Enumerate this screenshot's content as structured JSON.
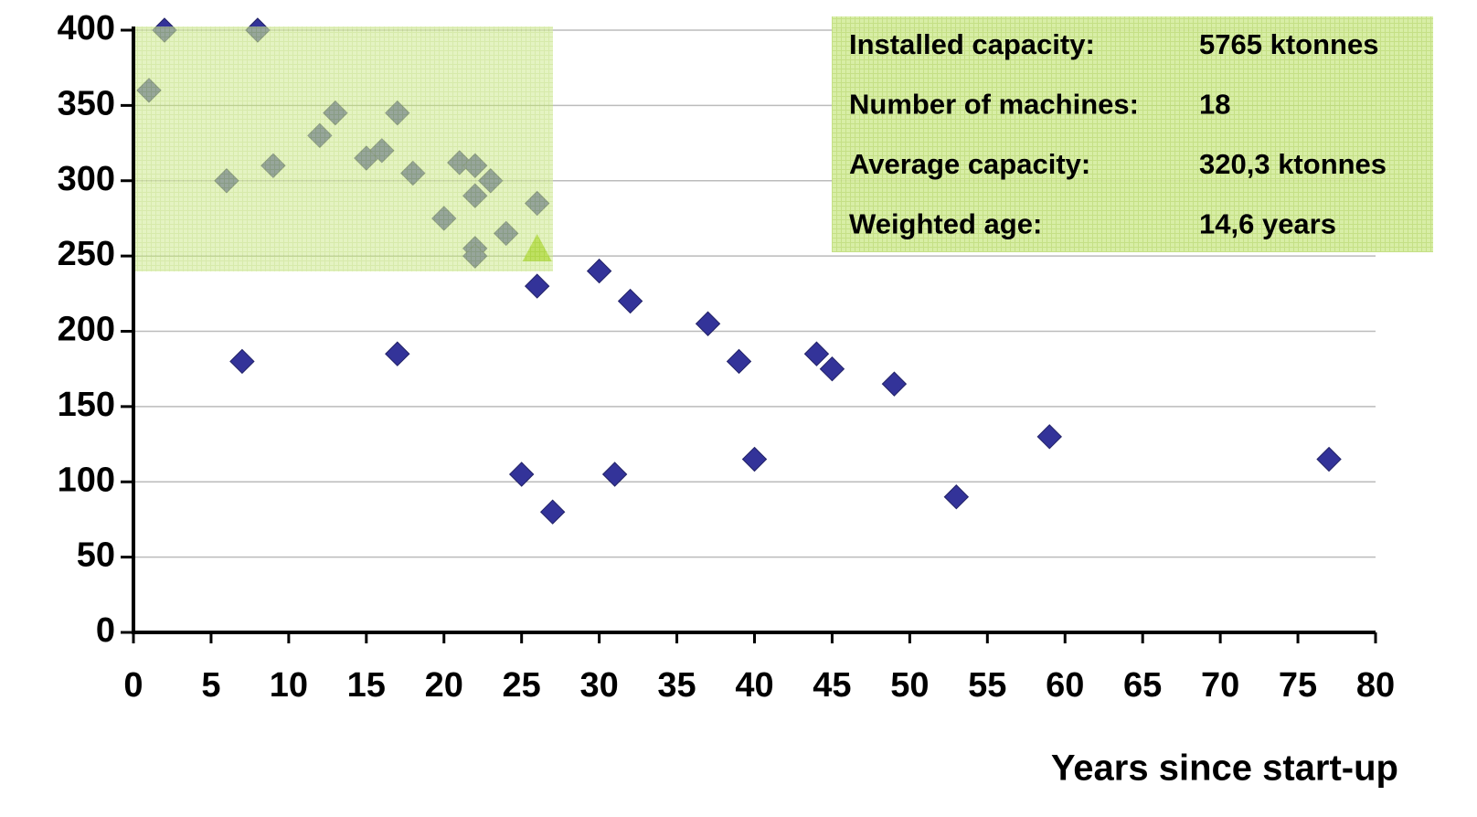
{
  "chart_data": {
    "type": "scatter",
    "x_label": "Years since start-up",
    "xlim": [
      0,
      80
    ],
    "ylim": [
      0,
      400
    ],
    "xticks": [
      0,
      5,
      10,
      15,
      20,
      25,
      30,
      35,
      40,
      45,
      50,
      55,
      60,
      65,
      70,
      75,
      80
    ],
    "yticks": [
      0,
      50,
      100,
      150,
      200,
      250,
      300,
      350,
      400
    ],
    "grid": true,
    "series": [
      {
        "color": "#333399",
        "marker": "diamond",
        "x": [
          1,
          2,
          8,
          6,
          7,
          9,
          12,
          13,
          15,
          16,
          17,
          17,
          18,
          20,
          21,
          22,
          22,
          22,
          22,
          23,
          24,
          25,
          26,
          26,
          27,
          30,
          31,
          32,
          37,
          39,
          40,
          44,
          45,
          49,
          53,
          59,
          77
        ],
        "values": [
          360,
          400,
          400,
          300,
          180,
          310,
          330,
          345,
          315,
          320,
          345,
          185,
          305,
          275,
          312,
          310,
          290,
          255,
          250,
          300,
          265,
          105,
          285,
          230,
          80,
          240,
          105,
          220,
          205,
          180,
          115,
          185,
          175,
          165,
          90,
          130,
          115
        ]
      },
      {
        "color": "#99cc00",
        "marker": "triangle",
        "x": [
          26
        ],
        "values": [
          255
        ]
      }
    ],
    "annotations": [
      {
        "label": "Installed capacity:",
        "value": "5765 ktonnes"
      },
      {
        "label": "Number of machines:",
        "value": "18"
      },
      {
        "label": "Average capacity:",
        "value": "320,3 ktonnes"
      },
      {
        "label": "Weighted age:",
        "value": "14,6 years"
      }
    ]
  }
}
